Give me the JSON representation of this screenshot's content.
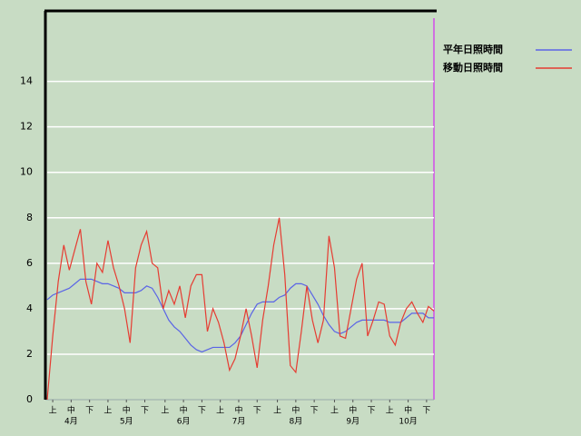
{
  "chart_data": {
    "type": "line",
    "x": [
      0,
      3,
      6,
      9,
      12,
      15,
      18,
      21,
      24,
      27,
      30,
      33,
      36,
      39,
      42,
      45,
      48,
      51,
      54,
      57,
      60,
      63,
      66,
      69,
      72,
      75,
      78,
      81,
      84,
      87,
      90,
      93,
      96,
      99,
      102,
      105,
      108,
      111,
      114,
      117,
      120,
      123,
      126,
      129,
      132,
      135,
      138,
      141,
      144,
      147,
      150,
      153,
      156,
      159,
      162,
      165,
      168,
      171,
      174,
      177,
      180,
      183,
      186,
      189,
      192,
      195,
      198,
      201,
      204,
      207,
      210
    ],
    "series": [
      {
        "name": "平年日照時間",
        "color": "#5a64e6",
        "values": [
          4.4,
          4.6,
          4.7,
          4.8,
          4.9,
          5.1,
          5.3,
          5.3,
          5.3,
          5.2,
          5.1,
          5.1,
          5.0,
          4.9,
          4.7,
          4.7,
          4.7,
          4.8,
          5.0,
          4.9,
          4.5,
          4.0,
          3.5,
          3.2,
          3.0,
          2.7,
          2.4,
          2.2,
          2.1,
          2.2,
          2.3,
          2.3,
          2.3,
          2.3,
          2.5,
          2.8,
          3.3,
          3.8,
          4.2,
          4.3,
          4.3,
          4.3,
          4.5,
          4.6,
          4.9,
          5.1,
          5.1,
          5.0,
          4.6,
          4.2,
          3.7,
          3.3,
          3.0,
          2.9,
          3.0,
          3.2,
          3.4,
          3.5,
          3.5,
          3.5,
          3.5,
          3.5,
          3.4,
          3.4,
          3.4,
          3.6,
          3.8,
          3.8,
          3.8,
          3.6,
          3.6
        ]
      },
      {
        "name": "移動日照時間",
        "color": "#e63c32",
        "values": [
          0,
          2.8,
          5.2,
          6.8,
          5.7,
          6.6,
          7.5,
          5.2,
          4.2,
          6.0,
          5.6,
          7.0,
          5.8,
          5.0,
          4.0,
          2.5,
          5.8,
          6.8,
          7.4,
          6.0,
          5.8,
          4.0,
          4.8,
          4.2,
          5.0,
          3.6,
          5.0,
          5.5,
          5.5,
          3.0,
          4.0,
          3.4,
          2.5,
          1.3,
          1.8,
          2.8,
          4.0,
          2.8,
          1.4,
          3.5,
          5.0,
          6.8,
          8.0,
          5.5,
          1.5,
          1.2,
          3.0,
          5.0,
          3.5,
          2.5,
          3.5,
          7.2,
          5.8,
          2.8,
          2.7,
          4.0,
          5.3,
          6.0,
          2.8,
          3.5,
          4.3,
          4.2,
          2.8,
          2.4,
          3.4,
          4.0,
          4.3,
          3.8,
          3.4,
          4.1,
          3.9
        ]
      }
    ],
    "xlim": [
      0,
      210
    ],
    "xticks": [
      {
        "value": 3,
        "label": "上"
      },
      {
        "value": 13,
        "label": "中"
      },
      {
        "value": 23,
        "label": "下"
      },
      {
        "value": 33,
        "label": "上"
      },
      {
        "value": 43,
        "label": "中"
      },
      {
        "value": 53,
        "label": "下"
      },
      {
        "value": 64,
        "label": "上"
      },
      {
        "value": 74,
        "label": "中"
      },
      {
        "value": 84,
        "label": "下"
      },
      {
        "value": 94,
        "label": "上"
      },
      {
        "value": 104,
        "label": "中"
      },
      {
        "value": 114,
        "label": "下"
      },
      {
        "value": 125,
        "label": "上"
      },
      {
        "value": 135,
        "label": "中"
      },
      {
        "value": 145,
        "label": "下"
      },
      {
        "value": 156,
        "label": "上"
      },
      {
        "value": 166,
        "label": "中"
      },
      {
        "value": 176,
        "label": "下"
      },
      {
        "value": 186,
        "label": "上"
      },
      {
        "value": 196,
        "label": "中"
      },
      {
        "value": 206,
        "label": "下"
      }
    ],
    "month_labels": [
      {
        "value": 13,
        "label": "4月"
      },
      {
        "value": 43,
        "label": "5月"
      },
      {
        "value": 74,
        "label": "6月"
      },
      {
        "value": 104,
        "label": "7月"
      },
      {
        "value": 135,
        "label": "8月"
      },
      {
        "value": 166,
        "label": "9月"
      },
      {
        "value": 196,
        "label": "10月"
      }
    ],
    "ylim": [
      0,
      17.1
    ],
    "yticks": [
      0,
      2,
      4,
      6,
      8,
      10,
      12,
      14
    ],
    "grid": true
  }
}
